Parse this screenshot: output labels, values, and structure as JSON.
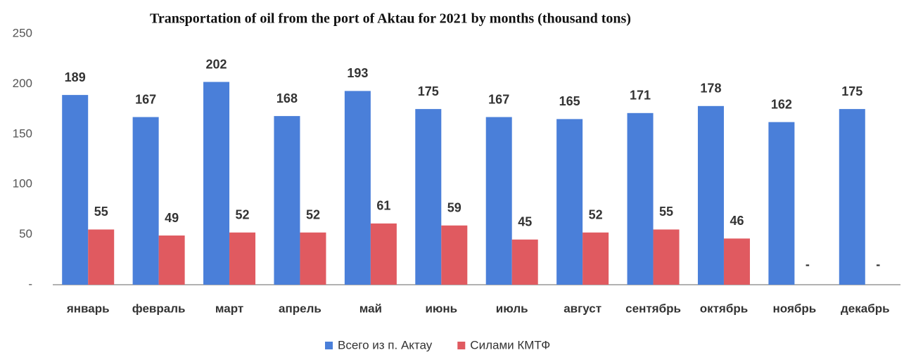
{
  "chart_data": {
    "type": "bar",
    "title": "Transportation of oil from the port of Aktau for 2021 by months (thousand tons)",
    "categories": [
      "январь",
      "февраль",
      "март",
      "апрель",
      "май",
      "июнь",
      "июль",
      "август",
      "сентябрь",
      "октябрь",
      "ноябрь",
      "декабрь"
    ],
    "series": [
      {
        "name": "Всего из п. Актау",
        "color": "#4a7fd9",
        "values": [
          189,
          167,
          202,
          168,
          193,
          175,
          167,
          165,
          171,
          178,
          162,
          175
        ]
      },
      {
        "name": "Силами КМТФ",
        "color": "#e05a60",
        "values": [
          55,
          49,
          52,
          52,
          61,
          59,
          45,
          52,
          55,
          46,
          null,
          null
        ],
        "value_labels": [
          "55",
          "49",
          "52",
          "52",
          "61",
          "59",
          "45",
          "52",
          "55",
          "46",
          "-",
          "-"
        ]
      }
    ],
    "ylim": [
      0,
      250
    ],
    "yticks": [
      {
        "value": 0,
        "label": "-"
      },
      50,
      100,
      150,
      200,
      250
    ],
    "grid": false,
    "legend": "bottom"
  }
}
